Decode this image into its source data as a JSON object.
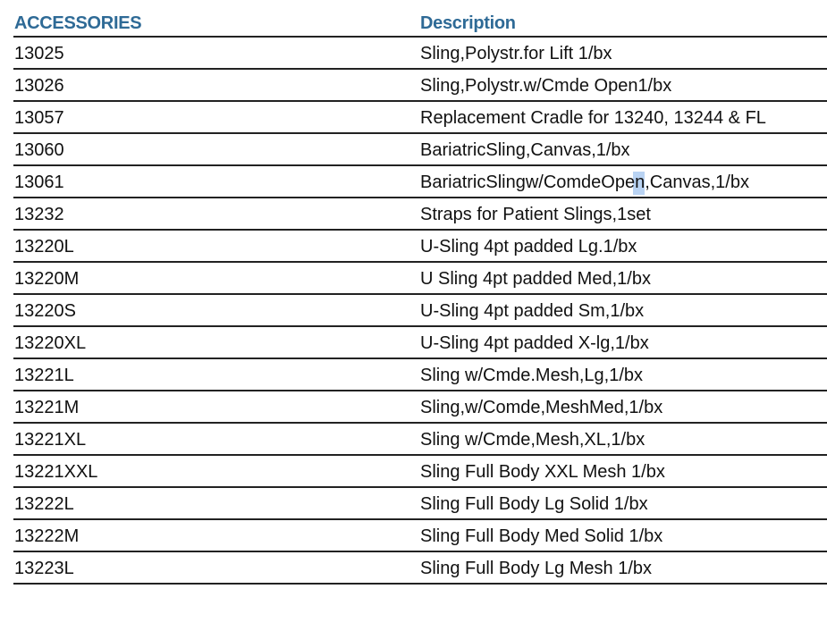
{
  "table": {
    "headers": [
      "ACCESSORIES",
      "Description"
    ],
    "rows": [
      [
        "13025",
        "Sling,Polystr.for Lift 1/bx"
      ],
      [
        "13026",
        "Sling,Polystr.w/Cmde Open1/bx"
      ],
      [
        "13057",
        "Replacement Cradle for 13240, 13244 & FL"
      ],
      [
        "13060",
        "BariatricSling,Canvas,1/bx"
      ],
      [
        "13061",
        "BariatricSlingw/ComdeOpen,Canvas,1/bx"
      ],
      [
        "13232",
        "Straps for Patient Slings,1set"
      ],
      [
        "13220L",
        "U-Sling 4pt padded Lg.1/bx"
      ],
      [
        "13220M",
        "U Sling 4pt padded Med,1/bx"
      ],
      [
        "13220S",
        "U-Sling 4pt padded Sm,1/bx"
      ],
      [
        "13220XL",
        "U-Sling 4pt padded X-lg,1/bx"
      ],
      [
        "13221L",
        "Sling w/Cmde.Mesh,Lg,1/bx"
      ],
      [
        "13221M",
        "Sling,w/Comde,MeshMed,1/bx"
      ],
      [
        "13221XL",
        "Sling w/Cmde,Mesh,XL,1/bx"
      ],
      [
        "13221XXL",
        "Sling Full Body XXL Mesh 1/bx"
      ],
      [
        "13222L",
        "Sling Full Body Lg Solid 1/bx"
      ],
      [
        "13222M",
        "Sling Full Body Med Solid 1/bx"
      ],
      [
        "13223L",
        "Sling Full Body Lg Mesh 1/bx"
      ]
    ]
  },
  "colors": {
    "header": "#2e6a96",
    "selection": "#a8c8f0"
  }
}
